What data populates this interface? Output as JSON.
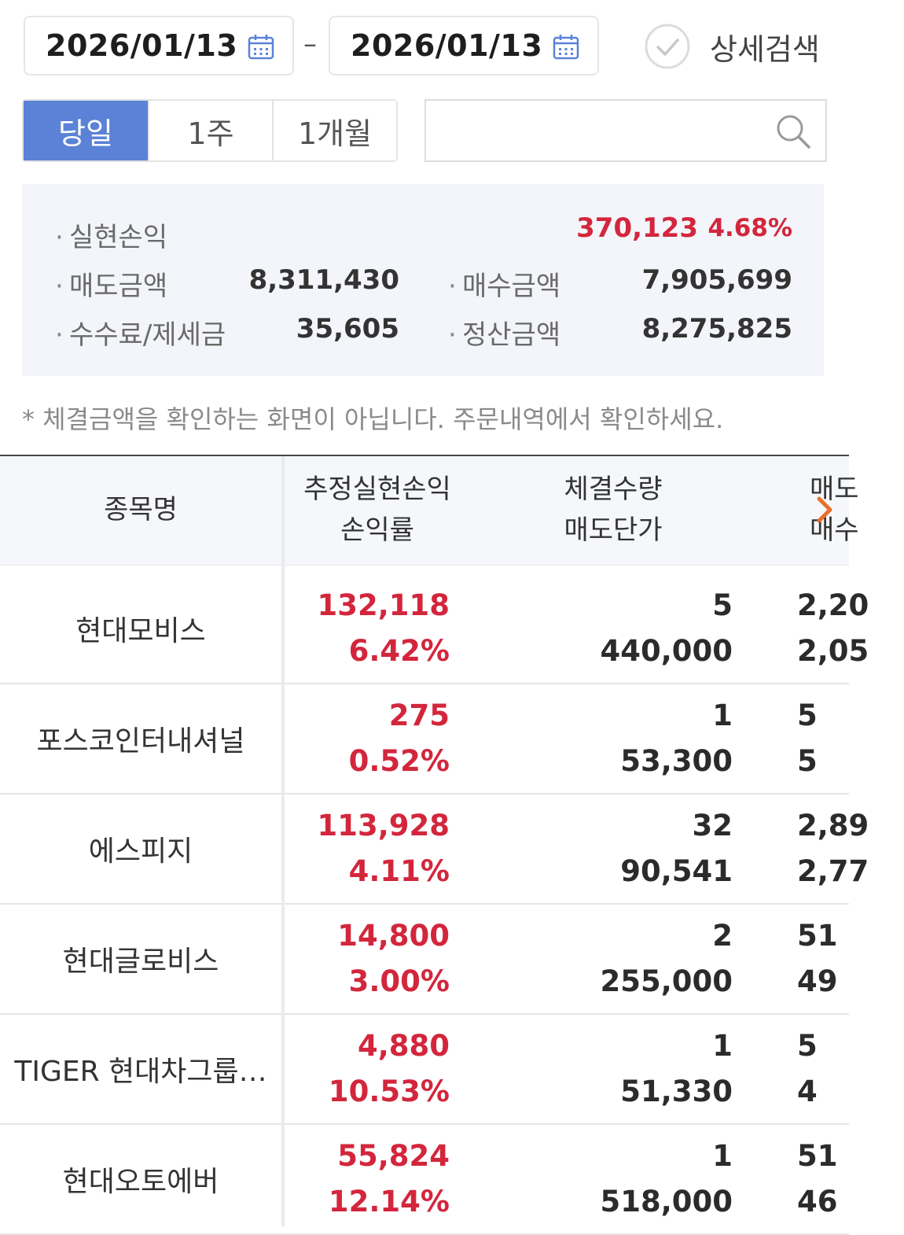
{
  "filters": {
    "start_date": "2026/01/13",
    "end_date": "2026/01/13",
    "separator": "–",
    "detail_search_label": "상세검색",
    "periods": [
      {
        "label": "당일",
        "active": true
      },
      {
        "label": "1주",
        "active": false
      },
      {
        "label": "1개월",
        "active": false
      }
    ],
    "search_placeholder": "",
    "accent_color": "#5b82d6"
  },
  "summary": {
    "realized_label": "실현손익",
    "realized_value": "370,123",
    "realized_rate": "4.68%",
    "sell_amount_label": "매도금액",
    "sell_amount_value": "8,311,430",
    "buy_amount_label": "매수금액",
    "buy_amount_value": "7,905,699",
    "fee_tax_label": "수수료/제세금",
    "fee_tax_value": "35,605",
    "settlement_label": "정산금액",
    "settlement_value": "8,275,825",
    "profit_color": "#d3263c"
  },
  "notice": "* 체결금액을 확인하는 화면이 아닙니다. 주문내역에서 확인하세요.",
  "table": {
    "headers": {
      "name": "종목명",
      "profit_line1": "추정실현손익",
      "profit_line2": "손익률",
      "qty_line1": "체결수량",
      "qty_line2": "매도단가",
      "amt_line1": "매도",
      "amt_line2": "매수"
    },
    "rows": [
      {
        "name": "현대모비스",
        "profit": "132,118",
        "rate": "6.42%",
        "qty": "5",
        "sell_price": "440,000",
        "amt1": "2,20",
        "amt2": "2,05"
      },
      {
        "name": "포스코인터내셔널",
        "profit": "275",
        "rate": "0.52%",
        "qty": "1",
        "sell_price": "53,300",
        "amt1": "5",
        "amt2": "5"
      },
      {
        "name": "에스피지",
        "profit": "113,928",
        "rate": "4.11%",
        "qty": "32",
        "sell_price": "90,541",
        "amt1": "2,89",
        "amt2": "2,77"
      },
      {
        "name": "현대글로비스",
        "profit": "14,800",
        "rate": "3.00%",
        "qty": "2",
        "sell_price": "255,000",
        "amt1": "51",
        "amt2": "49"
      },
      {
        "name": "TIGER 현대차그룹…",
        "profit": "4,880",
        "rate": "10.53%",
        "qty": "1",
        "sell_price": "51,330",
        "amt1": "5",
        "amt2": "4"
      },
      {
        "name": "현대오토에버",
        "profit": "55,824",
        "rate": "12.14%",
        "qty": "1",
        "sell_price": "518,000",
        "amt1": "51",
        "amt2": "46"
      }
    ]
  }
}
